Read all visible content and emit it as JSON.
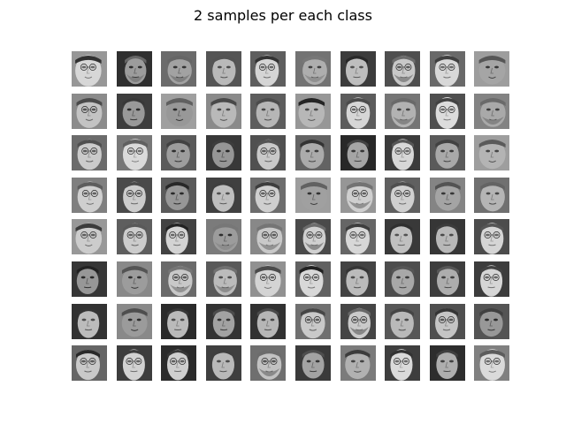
{
  "figure": {
    "title": "2 samples per each class"
  },
  "grid": {
    "rows": 8,
    "cols": 10,
    "rendering": "grayscale",
    "content": "face-photo"
  },
  "colors": {
    "background": "#ffffff",
    "text": "#000000"
  }
}
